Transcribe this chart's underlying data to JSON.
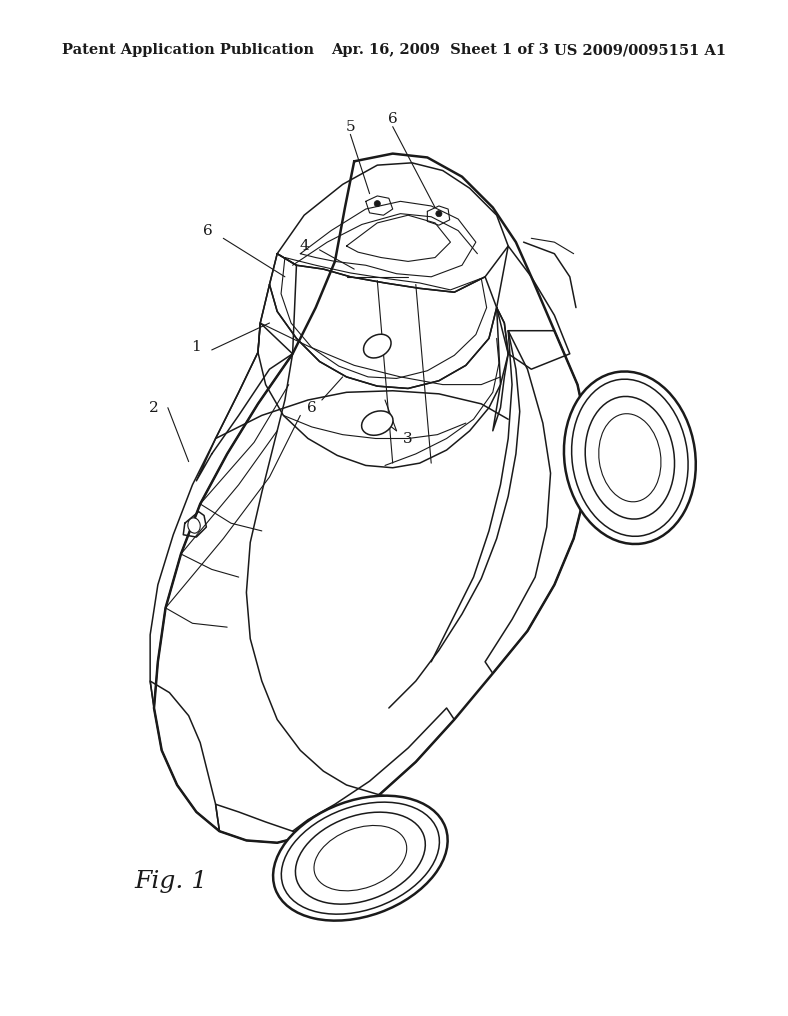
{
  "title": "Patent Application Publication",
  "date": "Apr. 16, 2009  Sheet 1 of 3",
  "patent_num": "US 2009/0095151 A1",
  "fig_label": "Fig. 1",
  "background": "#ffffff",
  "line_color": "#1a1a1a",
  "header_fontsize": 10.5,
  "fig_label_fontsize": 18,
  "label_fontsize": 11,
  "lw_outer": 1.8,
  "lw_inner": 1.1,
  "lw_detail": 0.8
}
